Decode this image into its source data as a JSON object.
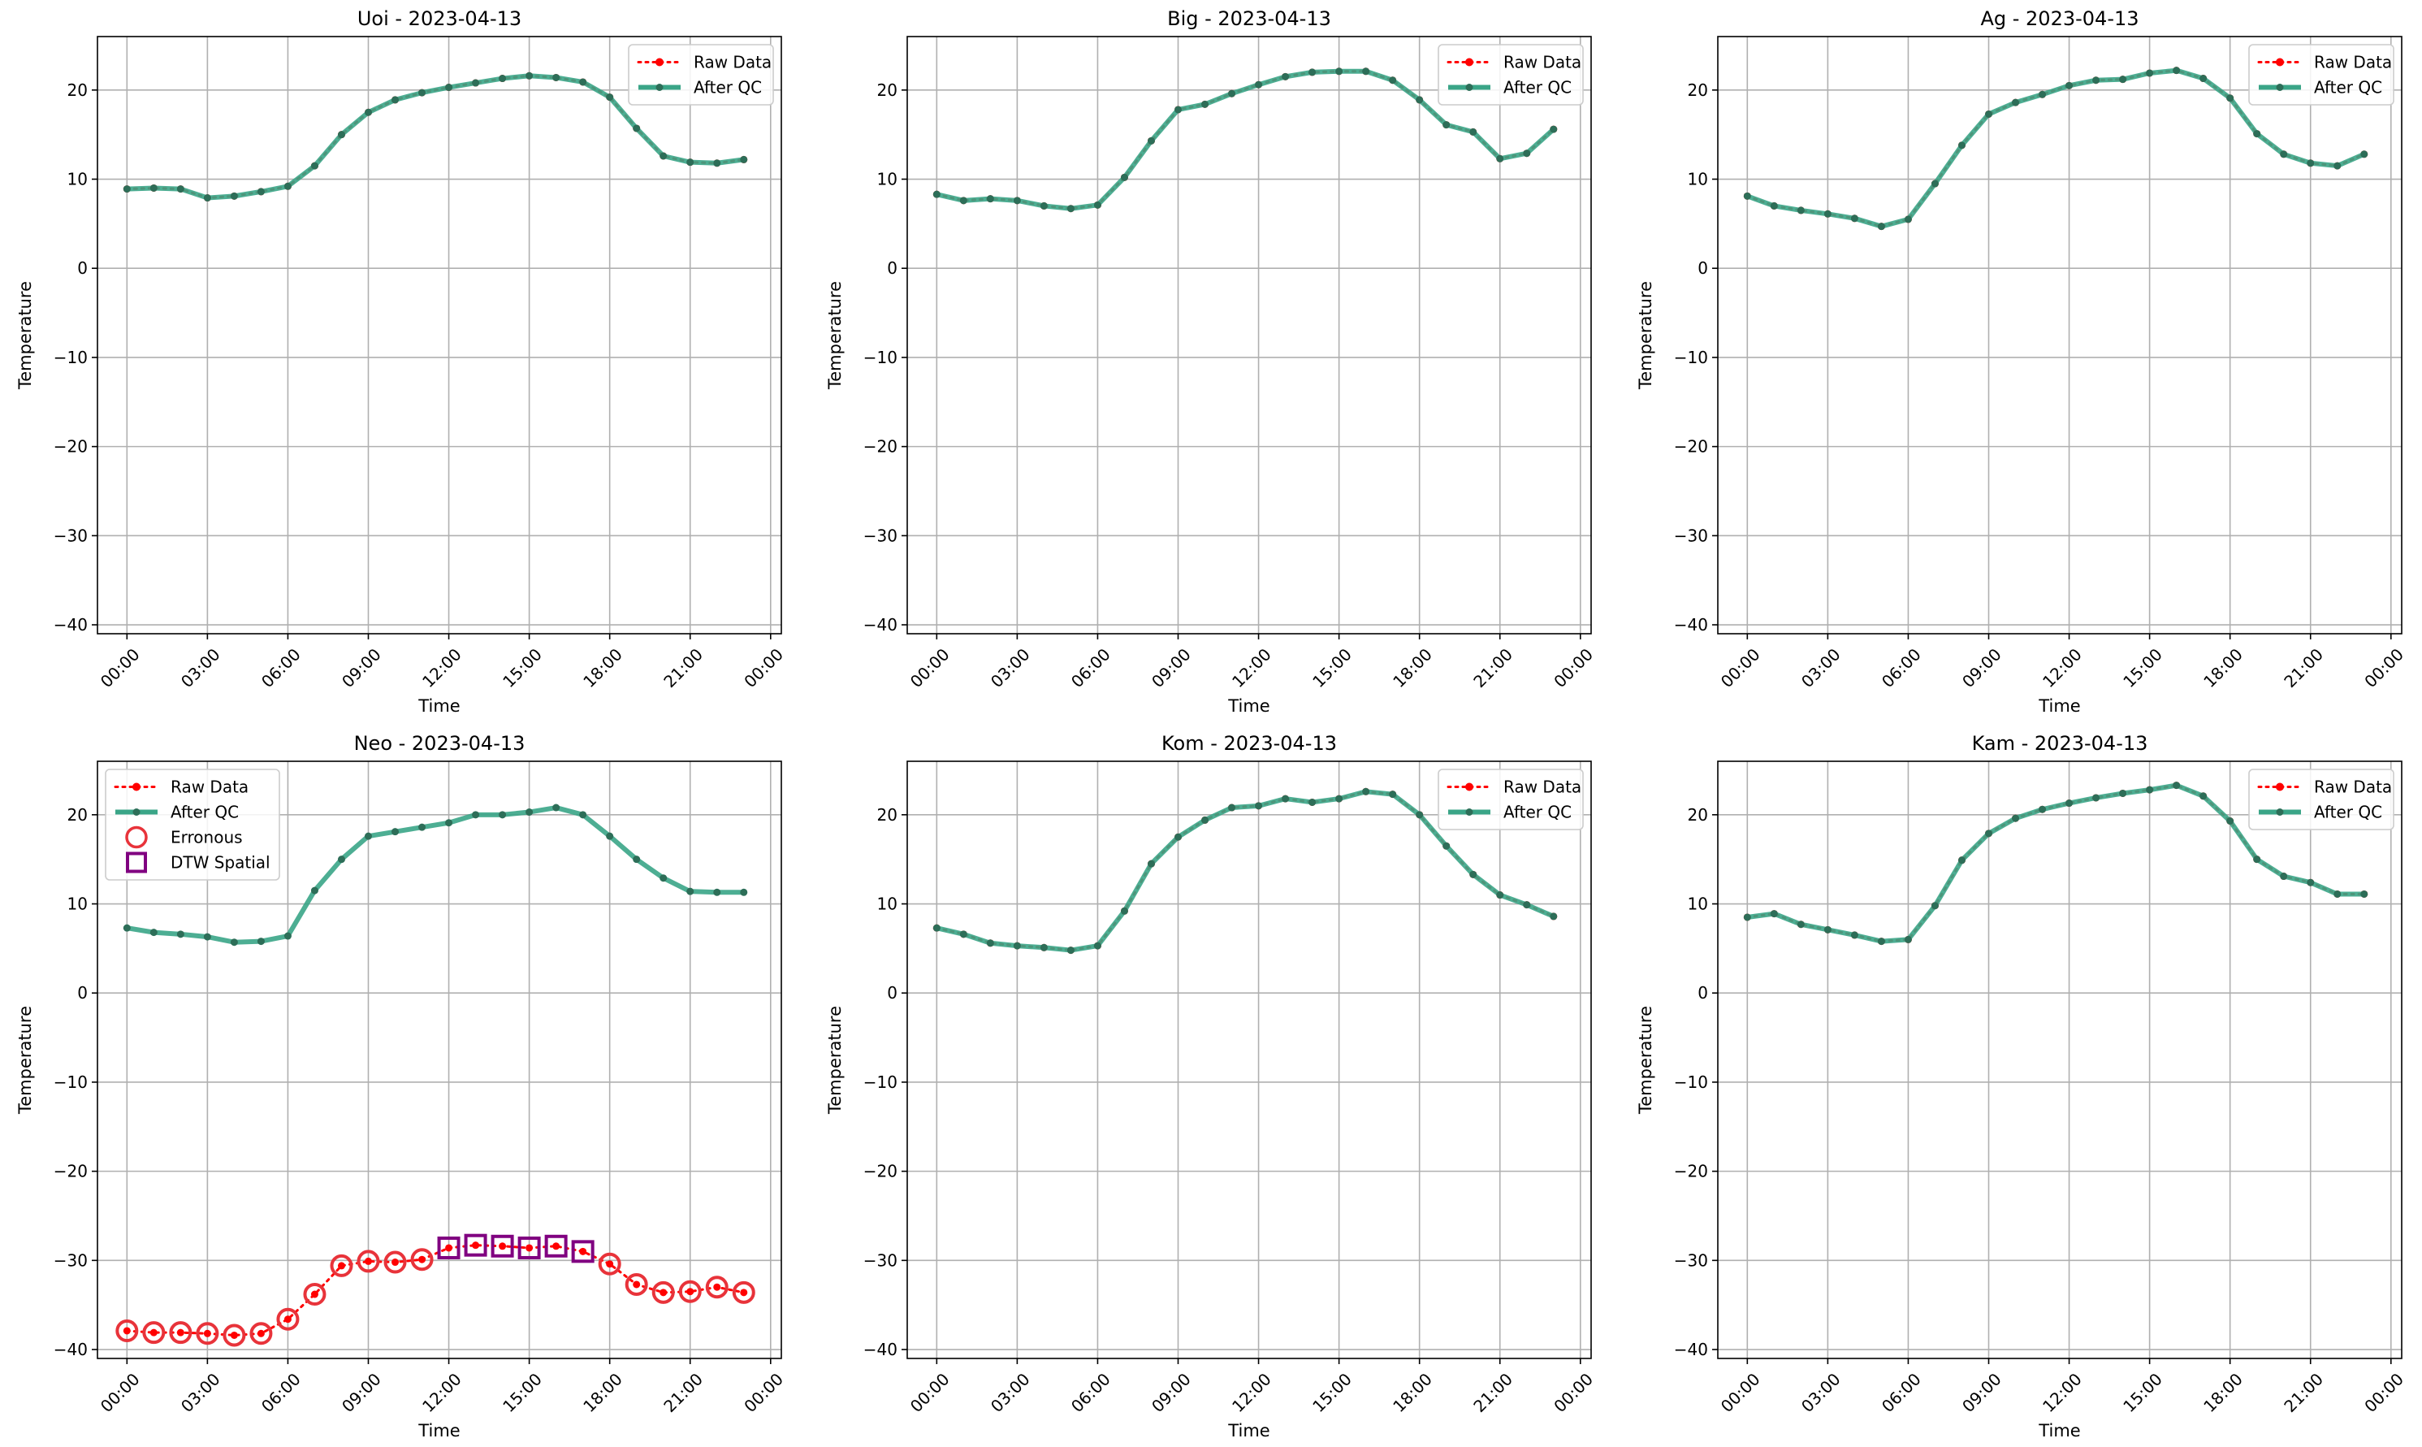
{
  "chart_data": [
    {
      "type": "line",
      "title": "Uoi - 2023-04-13",
      "xlabel": "Time",
      "ylabel": "Temperature",
      "ylim": [
        -41,
        26
      ],
      "yticks": [
        20,
        10,
        0,
        -10,
        -20,
        -30,
        -40
      ],
      "ytick_labels": [
        "20",
        "10",
        "0",
        "−10",
        "−20",
        "−30",
        "−40"
      ],
      "xlim": [
        -1.1,
        24.4
      ],
      "xticks": [
        0,
        3,
        6,
        9,
        12,
        15,
        18,
        21,
        24
      ],
      "xtick_labels": [
        "00:00",
        "03:00",
        "06:00",
        "09:00",
        "12:00",
        "15:00",
        "18:00",
        "21:00",
        "00:00"
      ],
      "grid": true,
      "legend_position": "top-right",
      "legend": [
        "Raw Data",
        "After QC"
      ],
      "x": [
        0,
        1,
        2,
        3,
        4,
        5,
        6,
        7,
        8,
        9,
        10,
        11,
        12,
        13,
        14,
        15,
        16,
        17,
        18,
        19,
        20,
        21,
        22,
        23
      ],
      "series": [
        {
          "name": "Raw Data",
          "color": "#ff0000",
          "values": [
            8.9,
            9.0,
            8.9,
            7.9,
            8.1,
            8.6,
            9.2,
            11.5,
            15.0,
            17.5,
            18.9,
            19.7,
            20.3,
            20.8,
            21.3,
            21.6,
            21.4,
            20.9,
            19.2,
            15.7,
            12.6,
            11.9,
            11.8,
            12.2
          ]
        },
        {
          "name": "After QC",
          "color": "#3aa587",
          "values": [
            8.9,
            9.0,
            8.9,
            7.9,
            8.1,
            8.6,
            9.2,
            11.5,
            15.0,
            17.5,
            18.9,
            19.7,
            20.3,
            20.8,
            21.3,
            21.6,
            21.4,
            20.9,
            19.2,
            15.7,
            12.6,
            11.9,
            11.8,
            12.2
          ]
        }
      ]
    },
    {
      "type": "line",
      "title": "Big - 2023-04-13",
      "xlabel": "Time",
      "ylabel": "Temperature",
      "ylim": [
        -41,
        26
      ],
      "yticks": [
        20,
        10,
        0,
        -10,
        -20,
        -30,
        -40
      ],
      "ytick_labels": [
        "20",
        "10",
        "0",
        "−10",
        "−20",
        "−30",
        "−40"
      ],
      "xlim": [
        -1.1,
        24.4
      ],
      "xticks": [
        0,
        3,
        6,
        9,
        12,
        15,
        18,
        21,
        24
      ],
      "xtick_labels": [
        "00:00",
        "03:00",
        "06:00",
        "09:00",
        "12:00",
        "15:00",
        "18:00",
        "21:00",
        "00:00"
      ],
      "grid": true,
      "legend_position": "top-right",
      "legend": [
        "Raw Data",
        "After QC"
      ],
      "x": [
        0,
        1,
        2,
        3,
        4,
        5,
        6,
        7,
        8,
        9,
        10,
        11,
        12,
        13,
        14,
        15,
        16,
        17,
        18,
        19,
        20,
        21,
        22,
        23
      ],
      "series": [
        {
          "name": "Raw Data",
          "color": "#ff0000",
          "values": [
            8.3,
            7.6,
            7.8,
            7.6,
            7.0,
            6.7,
            7.1,
            10.2,
            14.3,
            17.8,
            18.4,
            19.6,
            20.6,
            21.5,
            22.0,
            22.1,
            22.1,
            21.1,
            18.9,
            16.1,
            15.3,
            12.3,
            12.9,
            15.6
          ]
        },
        {
          "name": "After QC",
          "color": "#3aa587",
          "values": [
            8.3,
            7.6,
            7.8,
            7.6,
            7.0,
            6.7,
            7.1,
            10.2,
            14.3,
            17.8,
            18.4,
            19.6,
            20.6,
            21.5,
            22.0,
            22.1,
            22.1,
            21.1,
            18.9,
            16.1,
            15.3,
            12.3,
            12.9,
            15.6
          ]
        }
      ]
    },
    {
      "type": "line",
      "title": "Ag - 2023-04-13",
      "xlabel": "Time",
      "ylabel": "Temperature",
      "ylim": [
        -41,
        26
      ],
      "yticks": [
        20,
        10,
        0,
        -10,
        -20,
        -30,
        -40
      ],
      "ytick_labels": [
        "20",
        "10",
        "0",
        "−10",
        "−20",
        "−30",
        "−40"
      ],
      "xlim": [
        -1.1,
        24.4
      ],
      "xticks": [
        0,
        3,
        6,
        9,
        12,
        15,
        18,
        21,
        24
      ],
      "xtick_labels": [
        "00:00",
        "03:00",
        "06:00",
        "09:00",
        "12:00",
        "15:00",
        "18:00",
        "21:00",
        "00:00"
      ],
      "grid": true,
      "legend_position": "top-right",
      "legend": [
        "Raw Data",
        "After QC"
      ],
      "x": [
        0,
        1,
        2,
        3,
        4,
        5,
        6,
        7,
        8,
        9,
        10,
        11,
        12,
        13,
        14,
        15,
        16,
        17,
        18,
        19,
        20,
        21,
        22,
        23
      ],
      "series": [
        {
          "name": "Raw Data",
          "color": "#ff0000",
          "values": [
            8.1,
            7.0,
            6.5,
            6.1,
            5.6,
            4.7,
            5.5,
            9.5,
            13.8,
            17.3,
            18.6,
            19.5,
            20.5,
            21.1,
            21.2,
            21.9,
            22.2,
            21.3,
            19.1,
            15.1,
            12.8,
            11.8,
            11.5,
            12.8
          ]
        },
        {
          "name": "After QC",
          "color": "#3aa587",
          "values": [
            8.1,
            7.0,
            6.5,
            6.1,
            5.6,
            4.7,
            5.5,
            9.5,
            13.8,
            17.3,
            18.6,
            19.5,
            20.5,
            21.1,
            21.2,
            21.9,
            22.2,
            21.3,
            19.1,
            15.1,
            12.8,
            11.8,
            11.5,
            12.8
          ]
        }
      ]
    },
    {
      "type": "line",
      "title": "Neo - 2023-04-13",
      "xlabel": "Time",
      "ylabel": "Temperature",
      "ylim": [
        -41,
        26
      ],
      "yticks": [
        20,
        10,
        0,
        -10,
        -20,
        -30,
        -40
      ],
      "ytick_labels": [
        "20",
        "10",
        "0",
        "−10",
        "−20",
        "−30",
        "−40"
      ],
      "xlim": [
        -1.1,
        24.4
      ],
      "xticks": [
        0,
        3,
        6,
        9,
        12,
        15,
        18,
        21,
        24
      ],
      "xtick_labels": [
        "00:00",
        "03:00",
        "06:00",
        "09:00",
        "12:00",
        "15:00",
        "18:00",
        "21:00",
        "00:00"
      ],
      "grid": true,
      "legend_position": "top-left",
      "legend": [
        "Raw Data",
        "After QC",
        "Erronous",
        "DTW Spatial"
      ],
      "x": [
        0,
        1,
        2,
        3,
        4,
        5,
        6,
        7,
        8,
        9,
        10,
        11,
        12,
        13,
        14,
        15,
        16,
        17,
        18,
        19,
        20,
        21,
        22,
        23
      ],
      "series": [
        {
          "name": "Raw Data",
          "color": "#ff0000",
          "values": [
            -37.9,
            -38.1,
            -38.1,
            -38.2,
            -38.4,
            -38.2,
            -36.6,
            -33.8,
            -30.6,
            -30.1,
            -30.2,
            -29.9,
            -28.6,
            -28.3,
            -28.4,
            -28.6,
            -28.4,
            -29.0,
            -30.4,
            -32.7,
            -33.6,
            -33.5,
            -33.0,
            -33.6
          ]
        },
        {
          "name": "After QC",
          "color": "#3aa587",
          "values": [
            7.3,
            6.8,
            6.6,
            6.3,
            5.7,
            5.8,
            6.4,
            11.5,
            15.0,
            17.6,
            18.1,
            18.6,
            19.1,
            20.0,
            20.0,
            20.3,
            20.8,
            20.0,
            17.6,
            15.0,
            12.9,
            11.4,
            11.3,
            11.3
          ]
        },
        {
          "name": "Erronous",
          "color": "#e8333a",
          "x": [
            0,
            1,
            2,
            3,
            4,
            5,
            6,
            7,
            8,
            9,
            10,
            11,
            18,
            19,
            20,
            21,
            22,
            23
          ],
          "values": [
            -37.9,
            -38.1,
            -38.1,
            -38.2,
            -38.4,
            -38.2,
            -36.6,
            -33.8,
            -30.6,
            -30.1,
            -30.2,
            -29.9,
            -30.4,
            -32.7,
            -33.6,
            -33.5,
            -33.0,
            -33.6
          ]
        },
        {
          "name": "DTW Spatial",
          "color": "#800080",
          "x": [
            12,
            13,
            14,
            15,
            16,
            17
          ],
          "values": [
            -28.6,
            -28.3,
            -28.4,
            -28.6,
            -28.4,
            -29.0
          ]
        }
      ]
    },
    {
      "type": "line",
      "title": "Kom - 2023-04-13",
      "xlabel": "Time",
      "ylabel": "Temperature",
      "ylim": [
        -41,
        26
      ],
      "yticks": [
        20,
        10,
        0,
        -10,
        -20,
        -30,
        -40
      ],
      "ytick_labels": [
        "20",
        "10",
        "0",
        "−10",
        "−20",
        "−30",
        "−40"
      ],
      "xlim": [
        -1.1,
        24.4
      ],
      "xticks": [
        0,
        3,
        6,
        9,
        12,
        15,
        18,
        21,
        24
      ],
      "xtick_labels": [
        "00:00",
        "03:00",
        "06:00",
        "09:00",
        "12:00",
        "15:00",
        "18:00",
        "21:00",
        "00:00"
      ],
      "grid": true,
      "legend_position": "top-right",
      "legend": [
        "Raw Data",
        "After QC"
      ],
      "x": [
        0,
        1,
        2,
        3,
        4,
        5,
        6,
        7,
        8,
        9,
        10,
        11,
        12,
        13,
        14,
        15,
        16,
        17,
        18,
        19,
        20,
        21,
        22,
        23
      ],
      "series": [
        {
          "name": "Raw Data",
          "color": "#ff0000",
          "values": [
            7.3,
            6.6,
            5.6,
            5.3,
            5.1,
            4.8,
            5.3,
            9.2,
            14.5,
            17.5,
            19.4,
            20.8,
            21.0,
            21.8,
            21.4,
            21.8,
            22.6,
            22.3,
            20.0,
            16.5,
            13.3,
            11.0,
            9.9,
            8.6
          ]
        },
        {
          "name": "After QC",
          "color": "#3aa587",
          "values": [
            7.3,
            6.6,
            5.6,
            5.3,
            5.1,
            4.8,
            5.3,
            9.2,
            14.5,
            17.5,
            19.4,
            20.8,
            21.0,
            21.8,
            21.4,
            21.8,
            22.6,
            22.3,
            20.0,
            16.5,
            13.3,
            11.0,
            9.9,
            8.6
          ]
        }
      ]
    },
    {
      "type": "line",
      "title": "Kam - 2023-04-13",
      "xlabel": "Time",
      "ylabel": "Temperature",
      "ylim": [
        -41,
        26
      ],
      "yticks": [
        20,
        10,
        0,
        -10,
        -20,
        -30,
        -40
      ],
      "ytick_labels": [
        "20",
        "10",
        "0",
        "−10",
        "−20",
        "−30",
        "−40"
      ],
      "xlim": [
        -1.1,
        24.4
      ],
      "xticks": [
        0,
        3,
        6,
        9,
        12,
        15,
        18,
        21,
        24
      ],
      "xtick_labels": [
        "00:00",
        "03:00",
        "06:00",
        "09:00",
        "12:00",
        "15:00",
        "18:00",
        "21:00",
        "00:00"
      ],
      "grid": true,
      "legend_position": "top-right",
      "legend": [
        "Raw Data",
        "After QC"
      ],
      "x": [
        0,
        1,
        2,
        3,
        4,
        5,
        6,
        7,
        8,
        9,
        10,
        11,
        12,
        13,
        14,
        15,
        16,
        17,
        18,
        19,
        20,
        21,
        22,
        23
      ],
      "series": [
        {
          "name": "Raw Data",
          "color": "#ff0000",
          "values": [
            8.5,
            8.9,
            7.7,
            7.1,
            6.5,
            5.8,
            6.0,
            9.8,
            14.9,
            17.9,
            19.6,
            20.6,
            21.3,
            21.9,
            22.4,
            22.8,
            23.3,
            22.1,
            19.3,
            15.0,
            13.1,
            12.4,
            11.1,
            11.1
          ]
        },
        {
          "name": "After QC",
          "color": "#3aa587",
          "values": [
            8.5,
            8.9,
            7.7,
            7.1,
            6.5,
            5.8,
            6.0,
            9.8,
            14.9,
            17.9,
            19.6,
            20.6,
            21.3,
            21.9,
            22.4,
            22.8,
            23.3,
            22.1,
            19.3,
            15.0,
            13.1,
            12.4,
            11.1,
            11.1
          ]
        }
      ]
    }
  ]
}
